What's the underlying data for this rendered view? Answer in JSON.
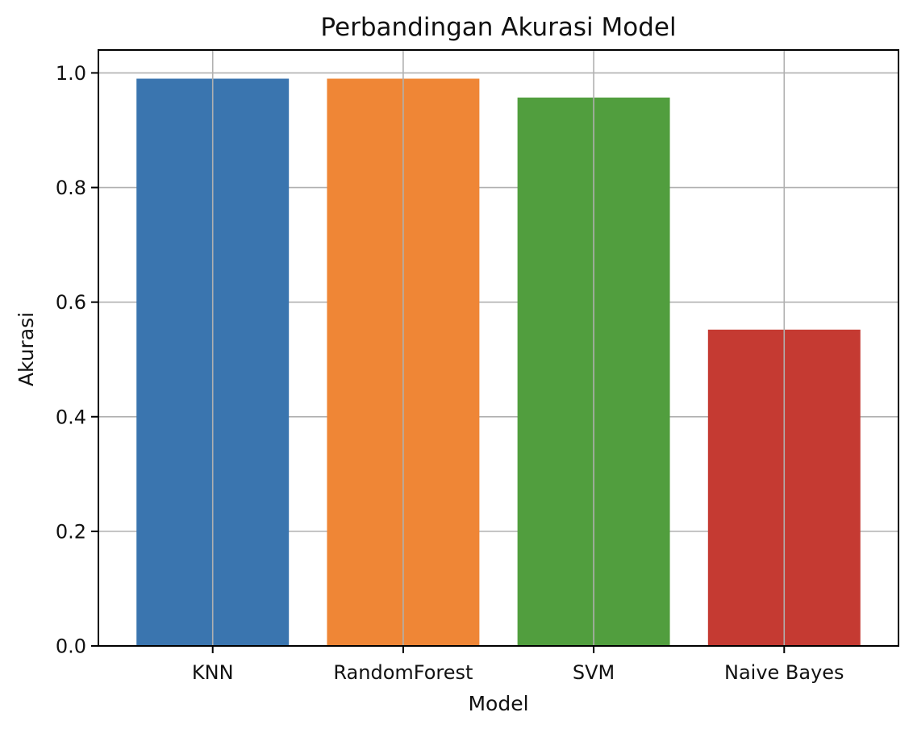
{
  "chart_data": {
    "type": "bar",
    "title": "Perbandingan Akurasi Model",
    "xlabel": "Model",
    "ylabel": "Akurasi",
    "categories": [
      "KNN",
      "RandomForest",
      "SVM",
      "Naive Bayes"
    ],
    "values": [
      0.99,
      0.99,
      0.957,
      0.552
    ],
    "colors": [
      "#3a75af",
      "#ef8636",
      "#519e3e",
      "#c53a32"
    ],
    "ylim": [
      0,
      1.04
    ],
    "yticks": [
      0.0,
      0.2,
      0.4,
      0.6,
      0.8,
      1.0
    ],
    "ytick_labels": [
      "0.0",
      "0.2",
      "0.4",
      "0.6",
      "0.8",
      "1.0"
    ],
    "grid": true,
    "legend": "none"
  }
}
